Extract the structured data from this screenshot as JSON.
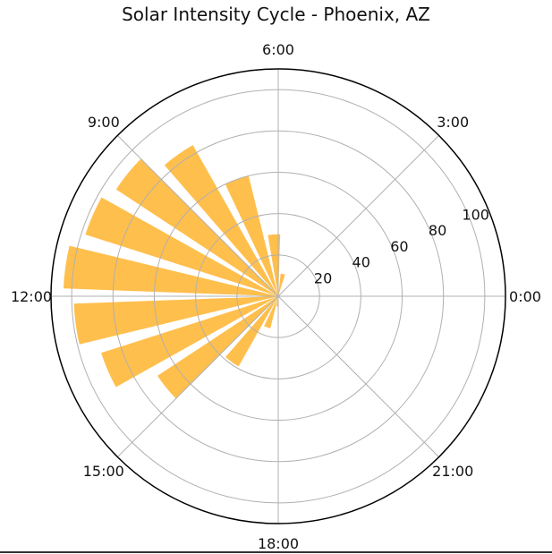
{
  "chart_data": {
    "type": "bar",
    "subtype": "polar",
    "title": "Solar Intensity Cycle - Phoenix, AZ",
    "theta_unit": "hour of day (24 bars spaced evenly over 360°, counter-clockwise from 0:00 at right)",
    "categories": [
      "0",
      "1",
      "2",
      "3",
      "4",
      "5",
      "6",
      "7",
      "8",
      "9",
      "10",
      "11",
      "12",
      "13",
      "14",
      "15",
      "16",
      "17",
      "18",
      "19",
      "20",
      "21",
      "22",
      "23"
    ],
    "values": [
      0,
      0,
      0,
      0,
      0,
      11,
      30,
      60,
      84,
      94,
      98,
      104,
      99,
      90,
      70,
      39,
      16,
      5,
      0,
      0,
      0,
      0,
      0,
      0
    ],
    "angular_tick_labels": [
      "0:00",
      "3:00",
      "6:00",
      "9:00",
      "12:00",
      "15:00",
      "18:00",
      "21:00"
    ],
    "radial_tick_labels": [
      "20",
      "40",
      "60",
      "80",
      "100"
    ],
    "radial_ticks": [
      20,
      40,
      60,
      80,
      100
    ],
    "rlim": [
      0,
      110
    ],
    "grid": true,
    "bar_color": "#FFBF4D",
    "xlabel": "",
    "ylabel": ""
  },
  "header": {
    "title": "Solar Intensity Cycle - Phoenix, AZ"
  }
}
